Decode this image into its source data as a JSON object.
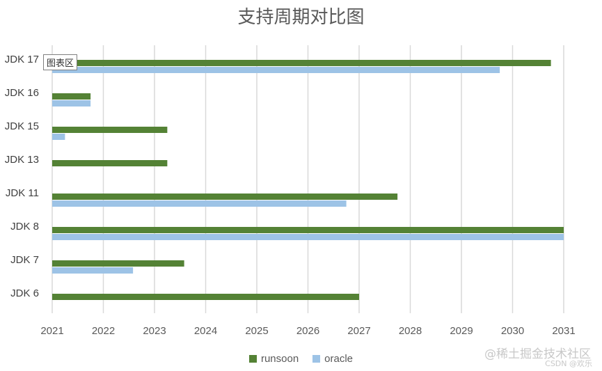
{
  "chart_data": {
    "type": "bar",
    "orientation": "horizontal",
    "title": "支持周期对比图",
    "categories": [
      "JDK 17",
      "JDK 16",
      "JDK 15",
      "JDK 13",
      "JDK 11",
      "JDK 8",
      "JDK 7",
      "JDK 6"
    ],
    "series": [
      {
        "name": "runsoon",
        "color": "#548235",
        "values": [
          2030.75,
          2021.75,
          2023.25,
          2023.25,
          2027.75,
          2031,
          2023.58,
          2027
        ]
      },
      {
        "name": "oracle",
        "color": "#9dc3e6",
        "values": [
          2029.75,
          2021.75,
          2021.25,
          null,
          2026.75,
          2031,
          2022.58,
          null
        ]
      }
    ],
    "xlim": [
      2021,
      2031
    ],
    "xticks": [
      "2021",
      "2022",
      "2023",
      "2024",
      "2025",
      "2026",
      "2027",
      "2028",
      "2029",
      "2030",
      "2031"
    ],
    "grid": "vertical",
    "legend_position": "bottom"
  },
  "tooltip": "图表区",
  "watermark": {
    "main": "@稀土掘金技术社区",
    "sub": "CSDN @欢乐"
  }
}
